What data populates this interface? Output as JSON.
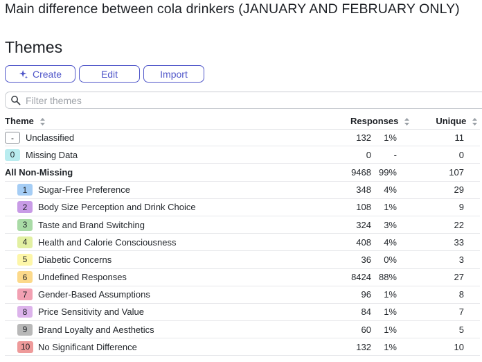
{
  "page_title": "Main difference between cola drinkers (JANUARY AND FEBRUARY ONLY)",
  "section_heading": "Themes",
  "toolbar": {
    "create_label": "Create",
    "edit_label": "Edit",
    "import_label": "Import"
  },
  "filter": {
    "placeholder": "Filter themes",
    "value": ""
  },
  "columns": {
    "theme": "Theme",
    "responses": "Responses",
    "unique": "Unique"
  },
  "rows": [
    {
      "badge": "-",
      "badge_color": "outline",
      "label": "Unclassified",
      "count": "132",
      "pct": "1%",
      "unique": "11",
      "bold": false,
      "indent": false
    },
    {
      "badge": "0",
      "badge_color": "#b9ecef",
      "label": "Missing Data",
      "count": "0",
      "pct": "-",
      "unique": "0",
      "bold": false,
      "indent": false
    },
    {
      "badge": "",
      "badge_color": "",
      "label": "All Non-Missing",
      "count": "9468",
      "pct": "99%",
      "unique": "107",
      "bold": true,
      "indent": false
    },
    {
      "badge": "1",
      "badge_color": "#a5cdf5",
      "label": "Sugar-Free Preference",
      "count": "348",
      "pct": "4%",
      "unique": "29",
      "bold": false,
      "indent": true
    },
    {
      "badge": "2",
      "badge_color": "#c89be6",
      "label": "Body Size Perception and Drink Choice",
      "count": "108",
      "pct": "1%",
      "unique": "9",
      "bold": false,
      "indent": true
    },
    {
      "badge": "3",
      "badge_color": "#a9dba6",
      "label": "Taste and Brand Switching",
      "count": "324",
      "pct": "3%",
      "unique": "22",
      "bold": false,
      "indent": true
    },
    {
      "badge": "4",
      "badge_color": "#e2f0a2",
      "label": "Health and Calorie Consciousness",
      "count": "408",
      "pct": "4%",
      "unique": "33",
      "bold": false,
      "indent": true
    },
    {
      "badge": "5",
      "badge_color": "#fdf6a8",
      "label": "Diabetic Concerns",
      "count": "36",
      "pct": "0%",
      "unique": "3",
      "bold": false,
      "indent": true
    },
    {
      "badge": "6",
      "badge_color": "#fcd98a",
      "label": "Undefined Responses",
      "count": "8424",
      "pct": "88%",
      "unique": "27",
      "bold": false,
      "indent": true
    },
    {
      "badge": "7",
      "badge_color": "#f2a0b2",
      "label": "Gender-Based Assumptions",
      "count": "96",
      "pct": "1%",
      "unique": "8",
      "bold": false,
      "indent": true
    },
    {
      "badge": "8",
      "badge_color": "#dcb3eb",
      "label": "Price Sensitivity and Value",
      "count": "84",
      "pct": "1%",
      "unique": "7",
      "bold": false,
      "indent": true
    },
    {
      "badge": "9",
      "badge_color": "#b8b8b8",
      "label": "Brand Loyalty and Aesthetics",
      "count": "60",
      "pct": "1%",
      "unique": "5",
      "bold": false,
      "indent": true
    },
    {
      "badge": "10",
      "badge_color": "#ee9a9a",
      "label": "No Significant Difference",
      "count": "132",
      "pct": "1%",
      "unique": "10",
      "bold": false,
      "indent": true
    }
  ],
  "icons": {
    "create": "sparkle-icon",
    "filter": "search-icon",
    "sort": "sort-arrows-icon"
  }
}
